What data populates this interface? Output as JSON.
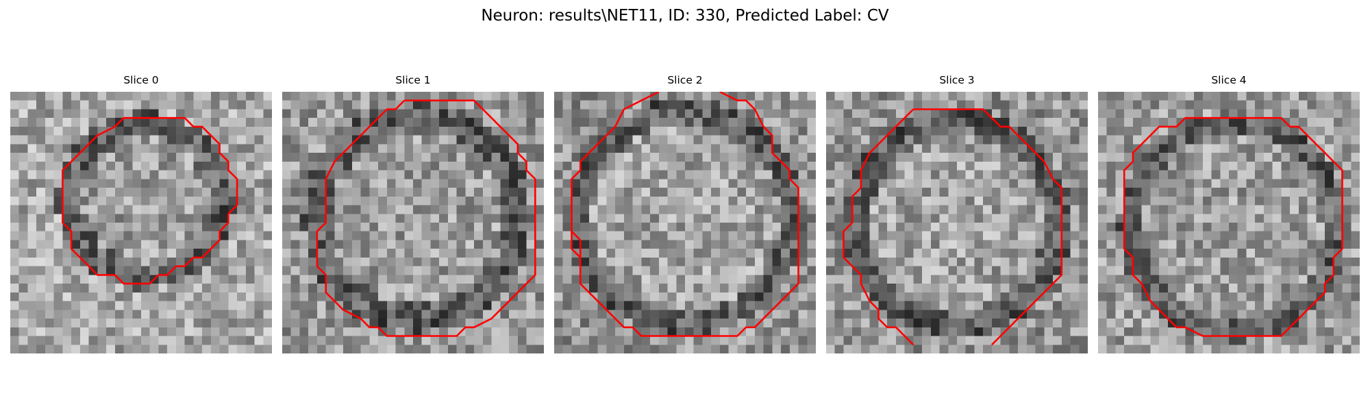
{
  "figure": {
    "title": "Neuron: results\\NET11, ID: 330, Predicted Label: CV"
  },
  "contour_color": "#ff0000",
  "slices": [
    {
      "label": "Slice 0",
      "contour": [
        [
          14,
          3
        ],
        [
          20,
          3
        ],
        [
          21,
          4
        ],
        [
          22,
          4
        ],
        [
          24,
          6
        ],
        [
          24,
          7
        ],
        [
          25,
          8
        ],
        [
          25,
          9
        ],
        [
          26,
          10
        ],
        [
          26,
          13
        ],
        [
          25,
          14
        ],
        [
          25,
          15
        ],
        [
          24,
          16
        ],
        [
          24,
          17
        ],
        [
          23,
          18
        ],
        [
          22,
          19
        ],
        [
          21,
          19
        ],
        [
          20,
          20
        ],
        [
          19,
          20
        ],
        [
          18,
          21
        ],
        [
          17,
          21
        ],
        [
          16,
          22
        ],
        [
          13,
          22
        ],
        [
          12,
          21
        ],
        [
          10,
          21
        ],
        [
          9,
          20
        ],
        [
          8,
          19
        ],
        [
          7,
          18
        ],
        [
          7,
          16
        ],
        [
          6,
          15
        ],
        [
          6,
          13
        ],
        [
          6,
          9
        ],
        [
          7,
          8
        ],
        [
          8,
          7
        ],
        [
          9,
          6
        ],
        [
          10,
          5
        ],
        [
          12,
          4
        ],
        [
          13,
          3
        ],
        [
          14,
          3
        ]
      ]
    },
    {
      "label": "Slice 1",
      "contour": [
        [
          14,
          1
        ],
        [
          22,
          1
        ],
        [
          23,
          2
        ],
        [
          24,
          3
        ],
        [
          25,
          4
        ],
        [
          26,
          5
        ],
        [
          27,
          6
        ],
        [
          27,
          7
        ],
        [
          28,
          8
        ],
        [
          28,
          9
        ],
        [
          29,
          10
        ],
        [
          29,
          21
        ],
        [
          28,
          22
        ],
        [
          27,
          23
        ],
        [
          26,
          24
        ],
        [
          25,
          25
        ],
        [
          24,
          26
        ],
        [
          22,
          27
        ],
        [
          21,
          27
        ],
        [
          20,
          28
        ],
        [
          12,
          28
        ],
        [
          11,
          27
        ],
        [
          10,
          27
        ],
        [
          9,
          26
        ],
        [
          7,
          25
        ],
        [
          6,
          24
        ],
        [
          5,
          23
        ],
        [
          5,
          21
        ],
        [
          4,
          20
        ],
        [
          4,
          19
        ],
        [
          4,
          16
        ],
        [
          5,
          15
        ],
        [
          5,
          10
        ],
        [
          6,
          8
        ],
        [
          7,
          7
        ],
        [
          8,
          6
        ],
        [
          9,
          5
        ],
        [
          10,
          4
        ],
        [
          11,
          3
        ],
        [
          12,
          2
        ],
        [
          13,
          2
        ],
        [
          14,
          1
        ]
      ]
    },
    {
      "label": "Slice 2",
      "contour": [
        [
          8,
          2
        ],
        [
          10,
          1
        ],
        [
          12,
          0
        ]
      ],
      "contour_b": [
        [
          19,
          0
        ],
        [
          21,
          1
        ],
        [
          22,
          1
        ],
        [
          23,
          2
        ],
        [
          24,
          4
        ],
        [
          25,
          5
        ],
        [
          25,
          7
        ],
        [
          27,
          9
        ],
        [
          27,
          10
        ],
        [
          28,
          11
        ],
        [
          28,
          22
        ],
        [
          27,
          23
        ],
        [
          26,
          24
        ],
        [
          25,
          25
        ],
        [
          24,
          26
        ],
        [
          23,
          27
        ],
        [
          22,
          27
        ],
        [
          21,
          28
        ],
        [
          10,
          28
        ],
        [
          9,
          27
        ],
        [
          8,
          27
        ],
        [
          7,
          26
        ],
        [
          6,
          25
        ],
        [
          5,
          24
        ],
        [
          4,
          23
        ],
        [
          3,
          22
        ],
        [
          3,
          21
        ],
        [
          3,
          19
        ],
        [
          2,
          18
        ],
        [
          2,
          16
        ],
        [
          2,
          10
        ],
        [
          3,
          9
        ],
        [
          3,
          8
        ],
        [
          4,
          7
        ],
        [
          5,
          6
        ],
        [
          6,
          5
        ],
        [
          7,
          4
        ],
        [
          8,
          2
        ]
      ],
      "contour_c": [
        [
          2,
          16
        ],
        [
          3,
          17
        ],
        [
          3,
          19
        ]
      ]
    },
    {
      "label": "Slice 3",
      "contour": [
        [
          10,
          2
        ],
        [
          18,
          2
        ],
        [
          19,
          3
        ],
        [
          20,
          4
        ],
        [
          21,
          4
        ],
        [
          22,
          5
        ],
        [
          23,
          6
        ],
        [
          24,
          7
        ],
        [
          25,
          8
        ],
        [
          26,
          10
        ],
        [
          27,
          11
        ],
        [
          27,
          21
        ],
        [
          26,
          22
        ],
        [
          25,
          23
        ],
        [
          24,
          24
        ],
        [
          23,
          25
        ],
        [
          22,
          26
        ],
        [
          21,
          27
        ],
        [
          20,
          28
        ],
        [
          19,
          29
        ]
      ],
      "contour_b": [
        [
          10,
          2
        ],
        [
          9,
          3
        ],
        [
          8,
          4
        ],
        [
          7,
          5
        ],
        [
          6,
          6
        ],
        [
          5,
          7
        ],
        [
          4,
          9
        ],
        [
          4,
          11
        ],
        [
          3,
          12
        ],
        [
          3,
          15
        ],
        [
          2,
          16
        ],
        [
          2,
          19
        ],
        [
          3,
          20
        ],
        [
          4,
          21
        ],
        [
          4,
          22
        ],
        [
          5,
          24
        ],
        [
          6,
          25
        ],
        [
          6,
          26
        ],
        [
          7,
          27
        ],
        [
          8,
          27
        ],
        [
          9,
          28
        ],
        [
          10,
          29
        ]
      ]
    },
    {
      "label": "Slice 4",
      "contour": [
        [
          12,
          3
        ],
        [
          21,
          3
        ],
        [
          22,
          4
        ],
        [
          23,
          4
        ],
        [
          24,
          5
        ],
        [
          25,
          6
        ],
        [
          26,
          7
        ],
        [
          27,
          8
        ],
        [
          28,
          9
        ],
        [
          28,
          10
        ],
        [
          28,
          18
        ],
        [
          27,
          19
        ],
        [
          27,
          21
        ],
        [
          26,
          22
        ],
        [
          26,
          23
        ],
        [
          25,
          24
        ],
        [
          24,
          25
        ],
        [
          23,
          26
        ],
        [
          22,
          27
        ],
        [
          21,
          28
        ],
        [
          12,
          28
        ],
        [
          10,
          27
        ],
        [
          9,
          27
        ],
        [
          8,
          26
        ],
        [
          7,
          25
        ],
        [
          6,
          24
        ],
        [
          5,
          22
        ],
        [
          4,
          21
        ],
        [
          4,
          20
        ],
        [
          4,
          19
        ],
        [
          3,
          18
        ],
        [
          3,
          16
        ],
        [
          3,
          9
        ],
        [
          4,
          8
        ],
        [
          4,
          7
        ],
        [
          5,
          6
        ],
        [
          6,
          5
        ],
        [
          7,
          4
        ],
        [
          9,
          4
        ],
        [
          10,
          3
        ],
        [
          12,
          3
        ]
      ]
    }
  ]
}
